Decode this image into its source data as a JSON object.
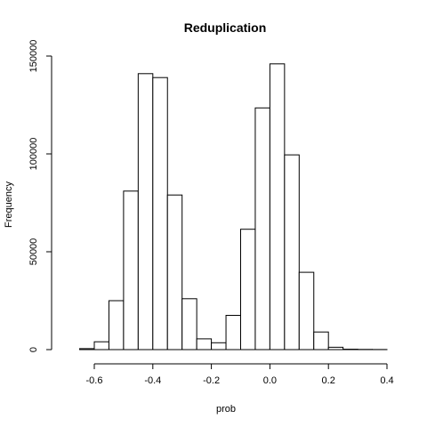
{
  "chart_data": {
    "type": "bar",
    "title": "Reduplication",
    "xlabel": "prob",
    "ylabel": "Frequency",
    "bins": [
      {
        "x0": -0.65,
        "x1": -0.6,
        "value": 500
      },
      {
        "x0": -0.6,
        "x1": -0.55,
        "value": 4000
      },
      {
        "x0": -0.55,
        "x1": -0.5,
        "value": 25000
      },
      {
        "x0": -0.5,
        "x1": -0.45,
        "value": 81000
      },
      {
        "x0": -0.45,
        "x1": -0.4,
        "value": 141000
      },
      {
        "x0": -0.4,
        "x1": -0.35,
        "value": 139000
      },
      {
        "x0": -0.35,
        "x1": -0.3,
        "value": 79000
      },
      {
        "x0": -0.3,
        "x1": -0.25,
        "value": 26000
      },
      {
        "x0": -0.25,
        "x1": -0.2,
        "value": 5500
      },
      {
        "x0": -0.2,
        "x1": -0.15,
        "value": 3500
      },
      {
        "x0": -0.15,
        "x1": -0.1,
        "value": 17500
      },
      {
        "x0": -0.1,
        "x1": -0.05,
        "value": 61500
      },
      {
        "x0": -0.05,
        "x1": 0.0,
        "value": 123500
      },
      {
        "x0": 0.0,
        "x1": 0.05,
        "value": 146000
      },
      {
        "x0": 0.05,
        "x1": 0.1,
        "value": 99500
      },
      {
        "x0": 0.1,
        "x1": 0.15,
        "value": 39500
      },
      {
        "x0": 0.15,
        "x1": 0.2,
        "value": 9000
      },
      {
        "x0": 0.2,
        "x1": 0.25,
        "value": 1200
      },
      {
        "x0": 0.25,
        "x1": 0.3,
        "value": 200
      },
      {
        "x0": 0.3,
        "x1": 0.35,
        "value": 100
      },
      {
        "x0": 0.35,
        "x1": 0.4,
        "value": 50
      }
    ],
    "x_ticks": [
      {
        "value": -0.6,
        "label": "-0.6"
      },
      {
        "value": -0.4,
        "label": "-0.4"
      },
      {
        "value": -0.2,
        "label": "-0.2"
      },
      {
        "value": 0.0,
        "label": "0.0"
      },
      {
        "value": 0.2,
        "label": "0.2"
      },
      {
        "value": 0.4,
        "label": "0.4"
      }
    ],
    "y_ticks": [
      {
        "value": 0,
        "label": "0"
      },
      {
        "value": 50000,
        "label": "50000"
      },
      {
        "value": 100000,
        "label": "100000"
      },
      {
        "value": 150000,
        "label": "150000"
      }
    ],
    "xlim": [
      -0.65,
      0.4
    ],
    "ylim": [
      0,
      150000
    ],
    "grid": false,
    "legend": "none",
    "colors": {
      "fill": "#ffffff",
      "stroke": "#000000"
    }
  }
}
